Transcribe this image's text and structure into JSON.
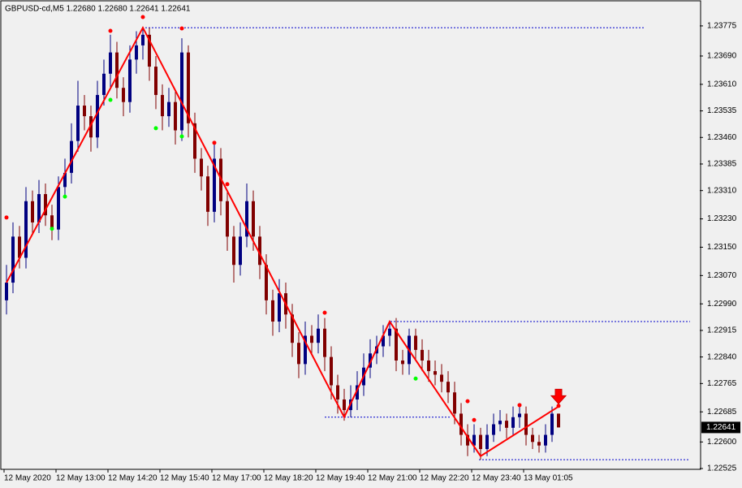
{
  "chart_data": {
    "type": "candlestick",
    "title": "GBPUSD-cd,M5  1.22680 1.22680 1.22641 1.22641",
    "categories": [
      "12 May 2020",
      null,
      null,
      null,
      null,
      null,
      null,
      null,
      "12 May 13:00",
      null,
      null,
      null,
      null,
      null,
      null,
      null,
      "12 May 14:20",
      null,
      null,
      null,
      null,
      null,
      null,
      null,
      "12 May 15:40",
      null,
      null,
      null,
      null,
      null,
      null,
      null,
      "12 May 17:00",
      null,
      null,
      null,
      null,
      null,
      null,
      null,
      "12 May 18:20",
      null,
      null,
      null,
      null,
      null,
      null,
      null,
      "12 May 19:40",
      null,
      null,
      null,
      null,
      null,
      null,
      null,
      "12 May 21:00",
      null,
      null,
      null,
      null,
      null,
      null,
      null,
      "12 May 22:20",
      null,
      null,
      null,
      null,
      null,
      null,
      null,
      "12 May 23:40",
      null,
      null,
      null,
      null,
      null,
      null,
      null,
      "13 May 01:05",
      null,
      null,
      null,
      null,
      null
    ],
    "candles": [
      [
        1.23,
        1.231,
        1.2296,
        1.2305
      ],
      [
        1.2305,
        1.2322,
        1.2302,
        1.2318
      ],
      [
        1.2318,
        1.2321,
        1.2309,
        1.2312
      ],
      [
        1.2312,
        1.2332,
        1.2309,
        1.2328
      ],
      [
        1.2328,
        1.2331,
        1.2319,
        1.2322
      ],
      [
        1.2322,
        1.2334,
        1.2319,
        1.233
      ],
      [
        1.233,
        1.2333,
        1.2321,
        1.2324
      ],
      [
        1.2324,
        1.2327,
        1.2317,
        1.232
      ],
      [
        1.232,
        1.2335,
        1.2317,
        1.2332
      ],
      [
        1.2332,
        1.234,
        1.2329,
        1.2336
      ],
      [
        1.2336,
        1.235,
        1.2333,
        1.2345
      ],
      [
        1.2345,
        1.2362,
        1.2342,
        1.2355
      ],
      [
        1.2355,
        1.2358,
        1.2348,
        1.2352
      ],
      [
        1.2352,
        1.2355,
        1.2342,
        1.2346
      ],
      [
        1.2346,
        1.2362,
        1.2343,
        1.2358
      ],
      [
        1.2358,
        1.2368,
        1.2355,
        1.2364
      ],
      [
        1.2364,
        1.2375,
        1.236,
        1.237
      ],
      [
        1.237,
        1.2373,
        1.2357,
        1.236
      ],
      [
        1.236,
        1.2363,
        1.2352,
        1.2356
      ],
      [
        1.2356,
        1.2372,
        1.2353,
        1.2368
      ],
      [
        1.2368,
        1.2376,
        1.2364,
        1.2372
      ],
      [
        1.2372,
        1.2377,
        1.2368,
        1.2375
      ],
      [
        1.2375,
        1.2377,
        1.2362,
        1.2366
      ],
      [
        1.2366,
        1.2369,
        1.2354,
        1.2358
      ],
      [
        1.2358,
        1.2361,
        1.2348,
        1.2352
      ],
      [
        1.2352,
        1.236,
        1.2349,
        1.2356
      ],
      [
        1.2356,
        1.2359,
        1.2344,
        1.2348
      ],
      [
        1.2348,
        1.2374,
        1.2345,
        1.237
      ],
      [
        1.237,
        1.2372,
        1.2346,
        1.235
      ],
      [
        1.235,
        1.2353,
        1.2336,
        1.234
      ],
      [
        1.234,
        1.2343,
        1.2331,
        1.2335
      ],
      [
        1.2335,
        1.2338,
        1.2321,
        1.2325
      ],
      [
        1.2325,
        1.2344,
        1.2322,
        1.234
      ],
      [
        1.234,
        1.2343,
        1.2324,
        1.2328
      ],
      [
        1.2328,
        1.2331,
        1.2314,
        1.2318
      ],
      [
        1.2318,
        1.2321,
        1.2305,
        1.231
      ],
      [
        1.231,
        1.2322,
        1.2307,
        1.2318
      ],
      [
        1.2318,
        1.2333,
        1.2315,
        1.2328
      ],
      [
        1.2328,
        1.2331,
        1.2314,
        1.2318
      ],
      [
        1.2318,
        1.2321,
        1.2306,
        1.231
      ],
      [
        1.231,
        1.2313,
        1.2296,
        1.23
      ],
      [
        1.23,
        1.2303,
        1.229,
        1.2294
      ],
      [
        1.2294,
        1.2306,
        1.2291,
        1.2302
      ],
      [
        1.2302,
        1.2305,
        1.2292,
        1.2296
      ],
      [
        1.2296,
        1.2299,
        1.2284,
        1.2288
      ],
      [
        1.2288,
        1.2291,
        1.2278,
        1.2282
      ],
      [
        1.2282,
        1.2294,
        1.2279,
        1.229
      ],
      [
        1.229,
        1.2293,
        1.2285,
        1.2288
      ],
      [
        1.2288,
        1.2296,
        1.2285,
        1.2292
      ],
      [
        1.2292,
        1.2295,
        1.228,
        1.2284
      ],
      [
        1.2284,
        1.2287,
        1.2272,
        1.2276
      ],
      [
        1.2276,
        1.2279,
        1.2268,
        1.2272
      ],
      [
        1.2272,
        1.2275,
        1.2266,
        1.2269
      ],
      [
        1.2269,
        1.2276,
        1.2267,
        1.2272
      ],
      [
        1.2272,
        1.228,
        1.2269,
        1.2276
      ],
      [
        1.2276,
        1.2285,
        1.2273,
        1.2281
      ],
      [
        1.2281,
        1.2289,
        1.2278,
        1.2285
      ],
      [
        1.2285,
        1.229,
        1.2282,
        1.2287
      ],
      [
        1.2287,
        1.2293,
        1.2284,
        1.229
      ],
      [
        1.229,
        1.2294,
        1.2287,
        1.2292
      ],
      [
        1.2292,
        1.2295,
        1.228,
        1.2283
      ],
      [
        1.2283,
        1.2286,
        1.2279,
        1.2282
      ],
      [
        1.2282,
        1.2292,
        1.2279,
        1.229
      ],
      [
        1.229,
        1.2292,
        1.2283,
        1.2286
      ],
      [
        1.2286,
        1.2289,
        1.228,
        1.2283
      ],
      [
        1.2283,
        1.2286,
        1.2277,
        1.228
      ],
      [
        1.228,
        1.2283,
        1.2276,
        1.2279
      ],
      [
        1.2279,
        1.2282,
        1.2274,
        1.2277
      ],
      [
        1.2277,
        1.228,
        1.2271,
        1.2274
      ],
      [
        1.2274,
        1.2277,
        1.2265,
        1.2268
      ],
      [
        1.2268,
        1.2271,
        1.2259,
        1.2262
      ],
      [
        1.2262,
        1.2265,
        1.2256,
        1.2259
      ],
      [
        1.2259,
        1.2265,
        1.2257,
        1.2262
      ],
      [
        1.2262,
        1.2264,
        1.2255,
        1.2258
      ],
      [
        1.2258,
        1.2265,
        1.2256,
        1.2262
      ],
      [
        1.2262,
        1.2268,
        1.226,
        1.2265
      ],
      [
        1.2265,
        1.2269,
        1.2263,
        1.2266
      ],
      [
        1.2266,
        1.2268,
        1.2261,
        1.2264
      ],
      [
        1.2264,
        1.227,
        1.2262,
        1.2267
      ],
      [
        1.2267,
        1.2271,
        1.2264,
        1.2268
      ],
      [
        1.2268,
        1.227,
        1.2259,
        1.2262
      ],
      [
        1.2262,
        1.2264,
        1.2258,
        1.226
      ],
      [
        1.226,
        1.2262,
        1.2257,
        1.2259
      ],
      [
        1.2259,
        1.2265,
        1.2257,
        1.2262
      ],
      [
        1.2262,
        1.227,
        1.226,
        1.2268
      ],
      [
        1.2268,
        1.2268,
        1.22641,
        1.22641
      ]
    ],
    "bull_color": "#000080",
    "bear_color": "#800000",
    "fractals_up": {
      "color": "#ff0000",
      "x": [
        0,
        16,
        21,
        27,
        32,
        34,
        49,
        71,
        72,
        79,
        85
      ],
      "values": [
        1.23234,
        1.23761,
        1.238,
        1.23768,
        1.23445,
        1.23328,
        1.22965,
        1.22715,
        1.22662,
        1.22704,
        1.22702
      ]
    },
    "fractals_down": {
      "color": "#00ff00",
      "x": [
        7,
        9,
        16,
        23,
        27,
        63
      ],
      "values": [
        1.23202,
        1.23293,
        1.23566,
        1.23486,
        1.23463,
        1.22779
      ]
    },
    "zigzag": {
      "color": "#ff0000",
      "x": [
        0,
        21,
        52,
        59,
        73,
        85
      ],
      "values": [
        1.2305,
        1.2377,
        1.2267,
        1.2294,
        1.2256,
        1.227
      ]
    },
    "levels": {
      "color": "#0000cc",
      "values": [
        1.2377,
        1.2294,
        1.2267,
        1.2255
      ]
    },
    "ylim": [
      1.22525,
      1.23839
    ],
    "yticks": [
      1.23775,
      {
        "value": 1.2369,
        "label": "1.23690"
      },
      {
        "value": 1.2361,
        "label": "1.23610"
      },
      1.23535,
      {
        "value": 1.2346,
        "label": "1.23460"
      },
      1.23385,
      {
        "value": 1.2331,
        "label": "1.23310"
      },
      {
        "value": 1.2323,
        "label": "1.23230"
      },
      {
        "value": 1.2315,
        "label": "1.23150"
      },
      {
        "value": 1.2307,
        "label": "1.23070"
      },
      {
        "value": 1.2299,
        "label": "1.22990"
      },
      1.22915,
      {
        "value": 1.2284,
        "label": "1.22840"
      },
      1.22765,
      1.22685,
      {
        "value": 1.226,
        "label": "1.22600"
      },
      1.22525
    ]
  }
}
